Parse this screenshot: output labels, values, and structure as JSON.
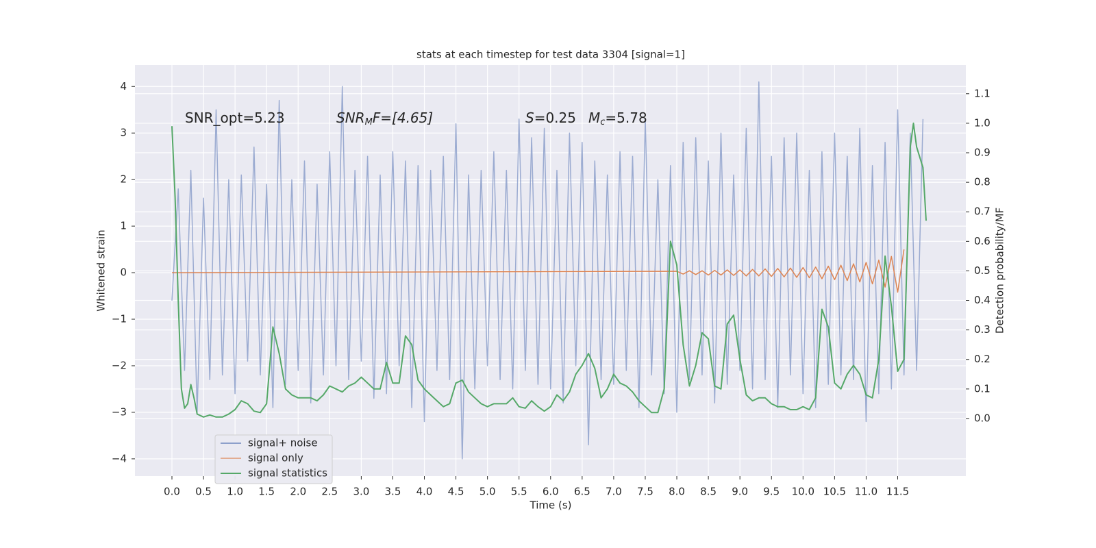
{
  "chart_data": {
    "type": "line",
    "title": "stats at each timestep for test data 3304 [signal=1]",
    "xlabel": "Time (s)",
    "ylabel": "Whitened strain",
    "y2label": "Detection probability/MF",
    "annotations": [
      {
        "main": "SNR_opt=5.23"
      },
      {
        "main": "SNR",
        "sub": "M",
        "rest": "F=[4.65]"
      },
      {
        "main": "S",
        "rest": "=0.25"
      },
      {
        "main": "M",
        "sub": "c",
        "rest": "=5.78"
      }
    ],
    "xlim": [
      -0.586,
      12.58
    ],
    "ylim": [
      -4.37,
      4.46
    ],
    "y2lim": [
      -0.195,
      1.197
    ],
    "xticks": [
      {
        "value": 0,
        "label": "0.0"
      },
      0.5,
      {
        "value": 1,
        "label": "1.0"
      },
      1.5,
      {
        "value": 2,
        "label": "2.0"
      },
      2.5,
      {
        "value": 3,
        "label": "3.0"
      },
      3.5,
      {
        "value": 4,
        "label": "4.0"
      },
      4.5,
      {
        "value": 5,
        "label": "5.0"
      },
      5.5,
      {
        "value": 6,
        "label": "6.0"
      },
      6.5,
      {
        "value": 7,
        "label": "7.0"
      },
      7.5,
      {
        "value": 8,
        "label": "8.0"
      },
      8.5,
      {
        "value": 9,
        "label": "9.0"
      },
      9.5,
      {
        "value": 10,
        "label": "10.0"
      },
      10.5,
      {
        "value": 11,
        "label": "11.0"
      },
      11.5
    ],
    "yticks": [
      {
        "value": -4,
        "label": "−4"
      },
      {
        "value": -3,
        "label": "−3"
      },
      {
        "value": -2,
        "label": "−2"
      },
      {
        "value": -1,
        "label": "−1"
      },
      0,
      1,
      2,
      3,
      4
    ],
    "y2ticks": [
      {
        "value": 0,
        "label": "0.0"
      },
      0.1,
      0.2,
      0.3,
      0.4,
      0.5,
      0.6,
      0.7,
      0.8,
      0.9,
      {
        "value": 1,
        "label": "1.0"
      },
      1.1
    ],
    "grid": true,
    "legend": "lower left",
    "series": [
      {
        "name": "signal+ noise",
        "color": "#8da0cb",
        "x": [
          0,
          0.1,
          0.2,
          0.3,
          0.4,
          0.5,
          0.6,
          0.7,
          0.8,
          0.9,
          1,
          1.1,
          1.2,
          1.3,
          1.4,
          1.5,
          1.6,
          1.7,
          1.8,
          1.9,
          2,
          2.1,
          2.2,
          2.3,
          2.4,
          2.5,
          2.6,
          2.7,
          2.8,
          2.9,
          3,
          3.1,
          3.2,
          3.3,
          3.4,
          3.5,
          3.6,
          3.7,
          3.8,
          3.9,
          4,
          4.1,
          4.2,
          4.3,
          4.4,
          4.5,
          4.6,
          4.7,
          4.8,
          4.9,
          5,
          5.1,
          5.2,
          5.3,
          5.4,
          5.5,
          5.6,
          5.7,
          5.8,
          5.9,
          6,
          6.1,
          6.2,
          6.3,
          6.4,
          6.5,
          6.6,
          6.7,
          6.8,
          6.9,
          7,
          7.1,
          7.2,
          7.3,
          7.4,
          7.5,
          7.6,
          7.7,
          7.8,
          7.9,
          8,
          8.1,
          8.2,
          8.3,
          8.4,
          8.5,
          8.6,
          8.7,
          8.8,
          8.9,
          9,
          9.1,
          9.2,
          9.3,
          9.4,
          9.5,
          9.6,
          9.7,
          9.8,
          9.9,
          10,
          10.1,
          10.2,
          10.3,
          10.4,
          10.5,
          10.6,
          10.7,
          10.8,
          10.9,
          11,
          11.1,
          11.2,
          11.3,
          11.4,
          11.5,
          11.6,
          11.7,
          11.8,
          11.9
        ],
        "values": [
          -0.6,
          1.8,
          -2.1,
          2.2,
          -3.0,
          1.6,
          -2.3,
          3.5,
          -2.2,
          2.0,
          -2.6,
          2.1,
          -1.9,
          2.7,
          -2.2,
          1.9,
          -2.9,
          3.7,
          -2.4,
          2.0,
          -2.1,
          2.4,
          -2.8,
          1.9,
          -2.2,
          2.6,
          -2.0,
          4.0,
          -2.3,
          2.2,
          -1.9,
          2.5,
          -2.7,
          2.1,
          -2.6,
          2.6,
          -2.0,
          2.4,
          -2.9,
          2.3,
          -3.2,
          2.2,
          -2.1,
          2.5,
          -2.3,
          3.2,
          -4.0,
          2.1,
          -2.5,
          2.2,
          -2.0,
          2.6,
          -2.3,
          2.2,
          -2.5,
          3.3,
          -2.1,
          2.9,
          -2.4,
          3.1,
          -2.5,
          2.2,
          -2.8,
          3.0,
          -2.0,
          2.8,
          -3.7,
          2.4,
          -2.3,
          2.1,
          -2.4,
          2.6,
          -2.1,
          2.5,
          -2.9,
          3.3,
          -2.2,
          2.0,
          -2.6,
          2.3,
          -3.0,
          2.8,
          -2.3,
          2.9,
          -2.2,
          2.4,
          -2.8,
          3.0,
          -2.4,
          2.1,
          -2.1,
          3.1,
          -2.5,
          4.1,
          -2.3,
          2.5,
          -2.9,
          2.9,
          -2.2,
          3.0,
          -2.6,
          2.2,
          -2.9,
          2.6,
          -2.4,
          3.0,
          -2.2,
          2.5,
          -2.3,
          3.1,
          -3.2,
          2.3,
          -2.6,
          2.8,
          -2.5,
          3.5,
          -2.2,
          3.0,
          -2.1,
          3.3
        ]
      },
      {
        "name": "signal only",
        "color": "#dd8452",
        "x": [
          0,
          8,
          8.1,
          8.2,
          8.3,
          8.4,
          8.5,
          8.6,
          8.7,
          8.8,
          8.9,
          9,
          9.1,
          9.2,
          9.3,
          9.4,
          9.5,
          9.6,
          9.7,
          9.8,
          9.9,
          10,
          10.1,
          10.2,
          10.3,
          10.4,
          10.5,
          10.6,
          10.7,
          10.8,
          10.9,
          11,
          11.1,
          11.2,
          11.3,
          11.4,
          11.5,
          11.6
        ],
        "values": [
          0,
          0.03,
          -0.03,
          0.04,
          -0.04,
          0.04,
          -0.05,
          0.05,
          -0.05,
          0.06,
          -0.06,
          0.06,
          -0.07,
          0.07,
          -0.07,
          0.08,
          -0.08,
          0.09,
          -0.09,
          0.1,
          -0.1,
          0.11,
          -0.11,
          0.12,
          -0.13,
          0.14,
          -0.15,
          0.16,
          -0.17,
          0.19,
          -0.2,
          0.22,
          -0.24,
          0.27,
          -0.31,
          0.35,
          -0.42,
          0.5
        ]
      },
      {
        "name": "signal statistics",
        "color": "#55a868",
        "axis": "y2",
        "x": [
          0,
          0.05,
          0.1,
          0.15,
          0.2,
          0.25,
          0.3,
          0.35,
          0.4,
          0.5,
          0.6,
          0.7,
          0.8,
          0.9,
          1,
          1.1,
          1.2,
          1.3,
          1.4,
          1.5,
          1.6,
          1.7,
          1.8,
          1.9,
          2,
          2.1,
          2.2,
          2.3,
          2.4,
          2.5,
          2.6,
          2.7,
          2.8,
          2.9,
          3,
          3.1,
          3.2,
          3.3,
          3.4,
          3.5,
          3.6,
          3.7,
          3.8,
          3.9,
          4,
          4.1,
          4.2,
          4.3,
          4.4,
          4.5,
          4.6,
          4.7,
          4.8,
          4.9,
          5,
          5.1,
          5.2,
          5.3,
          5.4,
          5.5,
          5.6,
          5.7,
          5.8,
          5.9,
          6,
          6.1,
          6.2,
          6.3,
          6.4,
          6.5,
          6.6,
          6.7,
          6.8,
          6.9,
          7,
          7.1,
          7.2,
          7.3,
          7.4,
          7.5,
          7.6,
          7.7,
          7.8,
          7.9,
          8,
          8.1,
          8.2,
          8.3,
          8.4,
          8.5,
          8.6,
          8.7,
          8.8,
          8.9,
          9,
          9.1,
          9.2,
          9.3,
          9.4,
          9.5,
          9.6,
          9.7,
          9.8,
          9.9,
          10,
          10.1,
          10.2,
          10.3,
          10.4,
          10.5,
          10.6,
          10.7,
          10.8,
          10.9,
          11,
          11.1,
          11.2,
          11.3,
          11.4,
          11.5,
          11.6,
          11.7,
          11.75,
          11.8,
          11.9,
          11.95
        ],
        "values": [
          0.99,
          0.75,
          0.4,
          0.1,
          0.035,
          0.05,
          0.115,
          0.07,
          0.015,
          0.005,
          0.012,
          0.005,
          0.005,
          0.015,
          0.03,
          0.06,
          0.05,
          0.025,
          0.02,
          0.05,
          0.31,
          0.22,
          0.1,
          0.08,
          0.07,
          0.07,
          0.07,
          0.06,
          0.08,
          0.11,
          0.1,
          0.09,
          0.11,
          0.12,
          0.14,
          0.12,
          0.1,
          0.1,
          0.19,
          0.12,
          0.12,
          0.28,
          0.25,
          0.13,
          0.1,
          0.08,
          0.06,
          0.04,
          0.05,
          0.12,
          0.13,
          0.09,
          0.07,
          0.05,
          0.04,
          0.05,
          0.05,
          0.05,
          0.07,
          0.04,
          0.035,
          0.06,
          0.04,
          0.025,
          0.04,
          0.08,
          0.06,
          0.09,
          0.15,
          0.18,
          0.22,
          0.17,
          0.07,
          0.1,
          0.15,
          0.12,
          0.11,
          0.09,
          0.06,
          0.04,
          0.02,
          0.02,
          0.1,
          0.6,
          0.52,
          0.25,
          0.11,
          0.18,
          0.29,
          0.27,
          0.11,
          0.1,
          0.32,
          0.35,
          0.2,
          0.08,
          0.06,
          0.07,
          0.07,
          0.05,
          0.04,
          0.04,
          0.03,
          0.03,
          0.04,
          0.03,
          0.07,
          0.37,
          0.31,
          0.12,
          0.1,
          0.15,
          0.18,
          0.15,
          0.08,
          0.07,
          0.2,
          0.55,
          0.38,
          0.16,
          0.2,
          0.92,
          1.0,
          0.92,
          0.85,
          0.67
        ]
      }
    ]
  }
}
